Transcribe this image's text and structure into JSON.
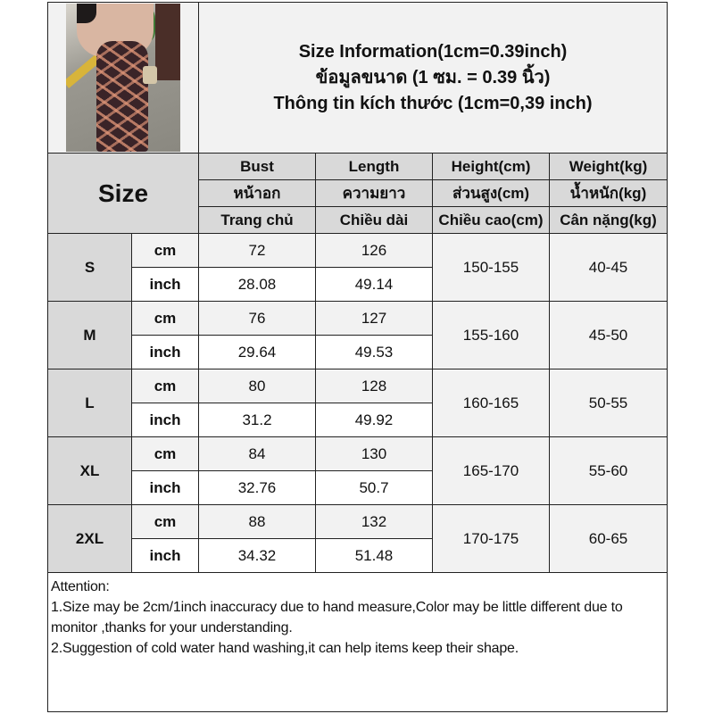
{
  "title": {
    "line1": "Size Information(1cm=0.39inch)",
    "line2": "ข้อมูลขนาด (1 ซม. = 0.39 นิ้ว)",
    "line3": "Thông tin kích thước (1cm=0,39 inch)"
  },
  "header": {
    "size_label": "Size",
    "columns": [
      {
        "en": "Bust",
        "th": "หน้าอก",
        "vi": "Trang chủ"
      },
      {
        "en": "Length",
        "th": "ความยาว",
        "vi": "Chiều dài"
      },
      {
        "en": "Height(cm)",
        "th": "ส่วนสูง(cm)",
        "vi": "Chiều cao(cm)"
      },
      {
        "en": "Weight(kg)",
        "th": "น้ำหนัก(kg)",
        "vi": "Cân nặng(kg)"
      }
    ]
  },
  "units": {
    "cm": "cm",
    "inch": "inch"
  },
  "rows": [
    {
      "size": "S",
      "bust_cm": "72",
      "length_cm": "126",
      "bust_in": "28.08",
      "length_in": "49.14",
      "height": "150-155",
      "weight": "40-45"
    },
    {
      "size": "M",
      "bust_cm": "76",
      "length_cm": "127",
      "bust_in": "29.64",
      "length_in": "49.53",
      "height": "155-160",
      "weight": "45-50"
    },
    {
      "size": "L",
      "bust_cm": "80",
      "length_cm": "128",
      "bust_in": "31.2",
      "length_in": "49.92",
      "height": "160-165",
      "weight": "50-55"
    },
    {
      "size": "XL",
      "bust_cm": "84",
      "length_cm": "130",
      "bust_in": "32.76",
      "length_in": "50.7",
      "height": "165-170",
      "weight": "55-60"
    },
    {
      "size": "2XL",
      "bust_cm": "88",
      "length_cm": "132",
      "bust_in": "34.32",
      "length_in": "51.48",
      "height": "170-175",
      "weight": "60-65"
    }
  ],
  "attention": {
    "heading": "Attention:",
    "note1": "1.Size may be 2cm/1inch inaccuracy due to hand measure,Color may be little different due to monitor ,thanks for your understanding.",
    "note2": "2.Suggestion of cold water hand washing,it can help items keep their shape."
  }
}
